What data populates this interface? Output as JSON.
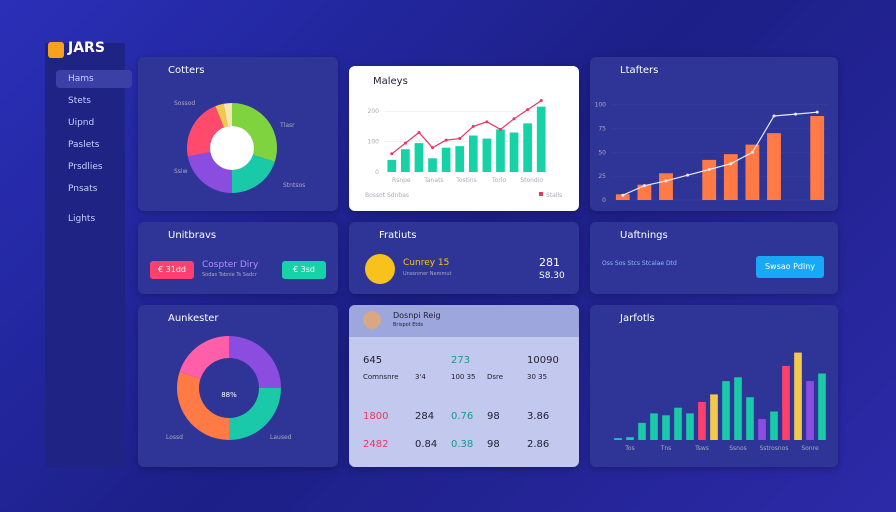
{
  "sidebar": {
    "brand": "JARS",
    "nav": [
      "Hams",
      "Stets",
      "Uipnd",
      "Paslets",
      "Prsdlies",
      "Pnsats",
      "Lights"
    ]
  },
  "panels": {
    "cotters": {
      "title": "Cotters",
      "labels": [
        "Sossod",
        "Tlasr",
        "Ssiw",
        "Stntsos"
      ],
      "segments": [
        {
          "value": 30,
          "color": "#7ed33f"
        },
        {
          "value": 20,
          "color": "#19c9a8"
        },
        {
          "value": 22,
          "color": "#8a4de0"
        },
        {
          "value": 22,
          "color": "#ff4a6e"
        },
        {
          "value": 3,
          "color": "#f2c94c"
        },
        {
          "value": 3,
          "color": "#f6e7b0"
        }
      ]
    },
    "maleys": {
      "title": "Maleys",
      "yticks": [
        {
          "value": 0,
          "label": "0"
        },
        {
          "value": 100,
          "label": "100"
        },
        {
          "value": 200,
          "label": "200"
        }
      ],
      "ylim": [
        0,
        250
      ],
      "categories": [
        "Rsnpe",
        "Tanats",
        "Tostins",
        "Torlo",
        "Stondio"
      ],
      "bars": {
        "color": "#16d2a6",
        "values": [
          40,
          75,
          95,
          45,
          80,
          85,
          120,
          110,
          140,
          130,
          160,
          215
        ]
      },
      "line": {
        "color": "#e8365f",
        "values": [
          60,
          95,
          130,
          80,
          105,
          110,
          150,
          165,
          140,
          175,
          205,
          235
        ]
      },
      "legend": [
        "Bossot Sdnbas",
        "Stalls"
      ]
    },
    "ltafters": {
      "title": "Ltafters",
      "yticks": [
        {
          "value": 0,
          "label": "0"
        },
        {
          "value": 25,
          "label": "25"
        },
        {
          "value": 50,
          "label": "50"
        },
        {
          "value": 75,
          "label": "75"
        },
        {
          "value": 100,
          "label": "100"
        }
      ],
      "ylim": [
        0,
        110
      ],
      "bars": {
        "color": "#ff7a45",
        "values": [
          6,
          16,
          28,
          0,
          42,
          48,
          58,
          70,
          0,
          88
        ]
      },
      "line": {
        "color": "#e8e8f8",
        "values": [
          5,
          15,
          20,
          26,
          32,
          38,
          50,
          88,
          90,
          92
        ]
      }
    },
    "unitbravs": {
      "title": "Unitbravs",
      "left_button": "€ 31dd",
      "text": "Cospter Diry",
      "subtext": "Sodas Tobnie Ts Sadcr",
      "right_button": "€ 3sd"
    },
    "fratiuts": {
      "title": "Fratiuts",
      "name": "Cunrey 15",
      "subtext": "Unssnmer Nemmut",
      "value": "281",
      "subvalue": "S8.30"
    },
    "uaftnings": {
      "title": "Uaftnings",
      "text": "Oss Sos Stcs Stcalae Dtd",
      "button": "Swsao Pdlny"
    },
    "aunkester": {
      "title": "Aunkester",
      "center": "88%",
      "labels": [
        "Lossd",
        "Laused"
      ],
      "segments": [
        {
          "value": 25,
          "color": "#8a4de0"
        },
        {
          "value": 25,
          "color": "#19c9a8"
        },
        {
          "value": 30,
          "color": "#ff7a45"
        },
        {
          "value": 20,
          "color": "#ff5fa8"
        }
      ]
    },
    "report": {
      "name": "Dosnpi Reig",
      "subtitle": "Brispot Etds",
      "rows": [
        [
          "645",
          "",
          "273",
          "",
          "10090"
        ],
        [
          "Comnsnre",
          "3'4",
          "100 35",
          "Dsre",
          "30 35"
        ],
        [
          "1800",
          "284",
          "0.76",
          "98",
          "3.86"
        ],
        [
          "2482",
          "0.84",
          "0.38",
          "98",
          "2.86"
        ]
      ]
    },
    "jarfotls": {
      "title": "Jarfotls",
      "ylim": [
        0,
        100
      ],
      "categories": [
        "Tos",
        "Tns",
        "Tsws",
        "Ssnos",
        "Sstrosnos",
        "Sonre"
      ],
      "bars": {
        "values": [
          2,
          3,
          18,
          28,
          26,
          34,
          28,
          40,
          48,
          62,
          66,
          45,
          22,
          30,
          78,
          92,
          62,
          70
        ],
        "colors": [
          "#19c9a8",
          "#19c9a8",
          "#19c9a8",
          "#19c9a8",
          "#19c9a8",
          "#19c9a8",
          "#19c9a8",
          "#ff3f6c",
          "#f2c94c",
          "#19c9a8",
          "#19c9a8",
          "#19c9a8",
          "#8a4de0",
          "#19c9a8",
          "#ff3f6c",
          "#f2c94c",
          "#8a4de0",
          "#19c9a8"
        ]
      }
    }
  }
}
